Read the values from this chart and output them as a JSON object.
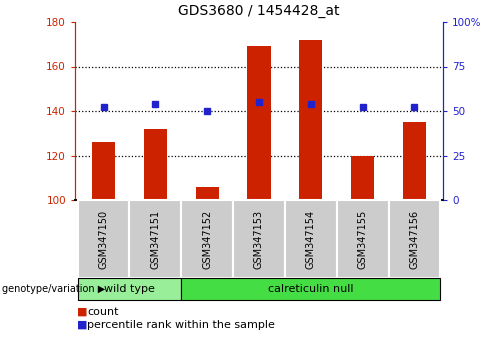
{
  "title": "GDS3680 / 1454428_at",
  "samples": [
    "GSM347150",
    "GSM347151",
    "GSM347152",
    "GSM347153",
    "GSM347154",
    "GSM347155",
    "GSM347156"
  ],
  "bar_values": [
    126,
    132,
    106,
    169,
    172,
    120,
    135
  ],
  "percentile_values": [
    52,
    54,
    50,
    55,
    54,
    52,
    52
  ],
  "bar_color": "#cc2200",
  "dot_color": "#2222cc",
  "ylim_left": [
    100,
    180
  ],
  "ylim_right": [
    0,
    100
  ],
  "yticks_left": [
    100,
    120,
    140,
    160,
    180
  ],
  "yticks_right": [
    0,
    25,
    50,
    75,
    100
  ],
  "yticklabels_right": [
    "0",
    "25",
    "50",
    "75",
    "100%"
  ],
  "grid_values": [
    120,
    140,
    160
  ],
  "groups": [
    {
      "label": "wild type",
      "indices": [
        0,
        1
      ],
      "color": "#99ee99"
    },
    {
      "label": "calreticulin null",
      "indices": [
        2,
        3,
        4,
        5,
        6
      ],
      "color": "#44dd44"
    }
  ],
  "group_label_prefix": "genotype/variation",
  "legend_count_label": "count",
  "legend_percentile_label": "percentile rank within the sample",
  "left_ylabel_color": "#cc2200",
  "right_ylabel_color": "#2222cc",
  "bar_width": 0.45
}
